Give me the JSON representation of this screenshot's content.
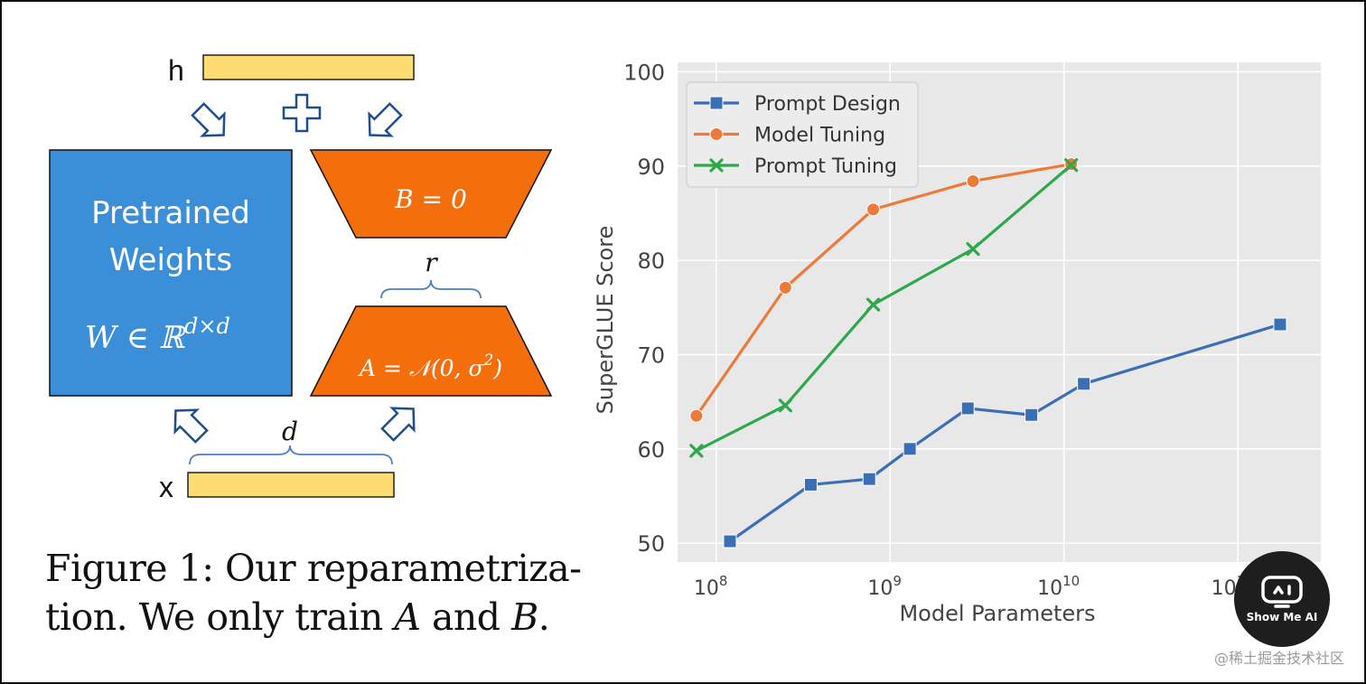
{
  "figure": {
    "h_label": "h",
    "x_label": "x",
    "plus_symbol": "+",
    "pretrained_line1": "Pretrained",
    "pretrained_line2": "Weights",
    "w_formula": "W ∈ ℝ",
    "w_superscript": "d×d",
    "b_formula": "B = 0",
    "a_formula_main": "A = 𝒩(0, σ",
    "a_formula_sup": "2",
    "a_formula_end": ")",
    "r_label": "r",
    "d_label": "d",
    "colors": {
      "blue": "#3a8fd8",
      "orange": "#f46e0b",
      "yellow": "#fddd73"
    }
  },
  "caption": {
    "line1": "Figure 1: Our reparametriza-",
    "line2_a": "tion. We only train ",
    "line2_A": "A",
    "line2_b": " and ",
    "line2_B": "B",
    "line2_end": "."
  },
  "chart_data": {
    "type": "line",
    "xlabel": "Model Parameters",
    "ylabel": "SuperGLUE Score",
    "x_scale": "log",
    "xlim": [
      60000000,
      300000000000
    ],
    "ylim": [
      48,
      101
    ],
    "yticks": [
      50,
      60,
      70,
      80,
      90,
      100
    ],
    "xticks": [
      {
        "value": 100000000,
        "base": "10",
        "exp": "8"
      },
      {
        "value": 1000000000,
        "base": "10",
        "exp": "9"
      },
      {
        "value": 10000000000,
        "base": "10",
        "exp": "10"
      },
      {
        "value": 100000000000,
        "base": "10",
        "exp": "11"
      }
    ],
    "grid": true,
    "legend_position": "top-left",
    "background": "#e8e8e8",
    "series": [
      {
        "name": "Prompt Design",
        "color": "#3a6fb5",
        "marker": "square",
        "x": [
          120000000,
          350000000,
          760000000,
          1300000000,
          2800000000,
          6500000000,
          13000000000,
          175000000000
        ],
        "y": [
          50.2,
          56.2,
          56.8,
          60.0,
          64.3,
          63.6,
          66.9,
          73.2
        ]
      },
      {
        "name": "Model Tuning",
        "color": "#ec7a3a",
        "marker": "circle",
        "x": [
          77000000,
          250000000,
          800000000,
          3000000000,
          11000000000
        ],
        "y": [
          63.5,
          77.1,
          85.4,
          88.4,
          90.2
        ]
      },
      {
        "name": "Prompt Tuning",
        "color": "#2ea84a",
        "marker": "x",
        "x": [
          77000000,
          250000000,
          800000000,
          3000000000,
          11000000000
        ],
        "y": [
          59.8,
          64.6,
          75.3,
          81.2,
          90.1
        ]
      }
    ]
  },
  "watermark": {
    "text": "@稀土掘金技术社区",
    "badge_label": "Show Me AI"
  }
}
